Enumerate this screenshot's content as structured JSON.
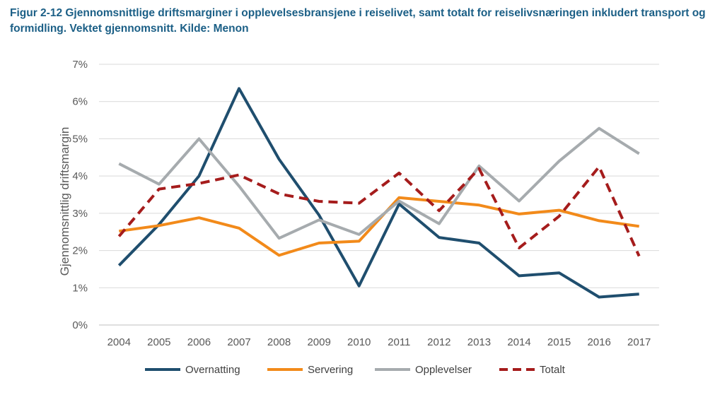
{
  "title": "Figur 2-12 Gjennomsnittlige driftsmarginer i opplevelsesbransjene i reiselivet, samt totalt for reiselivsnæringen inkludert transport og formidling. Vektet gjennomsnitt. Kilde: Menon",
  "chart_data": {
    "type": "line",
    "ylabel": "Gjennomsnittlig driftsmargin",
    "xlabel": "",
    "ylim": [
      0,
      7
    ],
    "yticks": [
      "0%",
      "1%",
      "2%",
      "3%",
      "4%",
      "5%",
      "6%",
      "7%"
    ],
    "grid": true,
    "legend_position": "bottom",
    "x": [
      "2004",
      "2005",
      "2006",
      "2007",
      "2008",
      "2009",
      "2010",
      "2011",
      "2012",
      "2013",
      "2014",
      "2015",
      "2016",
      "2017"
    ],
    "series": [
      {
        "name": "Overnatting",
        "color": "#1f4e6e",
        "dash": "solid",
        "values": [
          1.6,
          2.7,
          4.0,
          6.35,
          4.45,
          2.95,
          1.05,
          3.25,
          2.35,
          2.2,
          1.32,
          1.4,
          0.75,
          0.83
        ]
      },
      {
        "name": "Servering",
        "color": "#f28a1a",
        "dash": "solid",
        "values": [
          2.52,
          2.67,
          2.88,
          2.6,
          1.87,
          2.2,
          2.25,
          3.42,
          3.32,
          3.22,
          2.98,
          3.08,
          2.8,
          2.65
        ]
      },
      {
        "name": "Opplevelser",
        "color": "#a6abae",
        "dash": "solid",
        "values": [
          4.33,
          3.78,
          5.0,
          3.73,
          2.33,
          2.82,
          2.43,
          3.33,
          2.72,
          4.27,
          3.33,
          4.4,
          5.28,
          4.6
        ]
      },
      {
        "name": "Totalt",
        "color": "#a51c1c",
        "dash": "dashed",
        "values": [
          2.38,
          3.65,
          3.8,
          4.03,
          3.52,
          3.32,
          3.27,
          4.08,
          3.07,
          4.2,
          2.07,
          2.92,
          4.25,
          1.85
        ]
      }
    ]
  }
}
